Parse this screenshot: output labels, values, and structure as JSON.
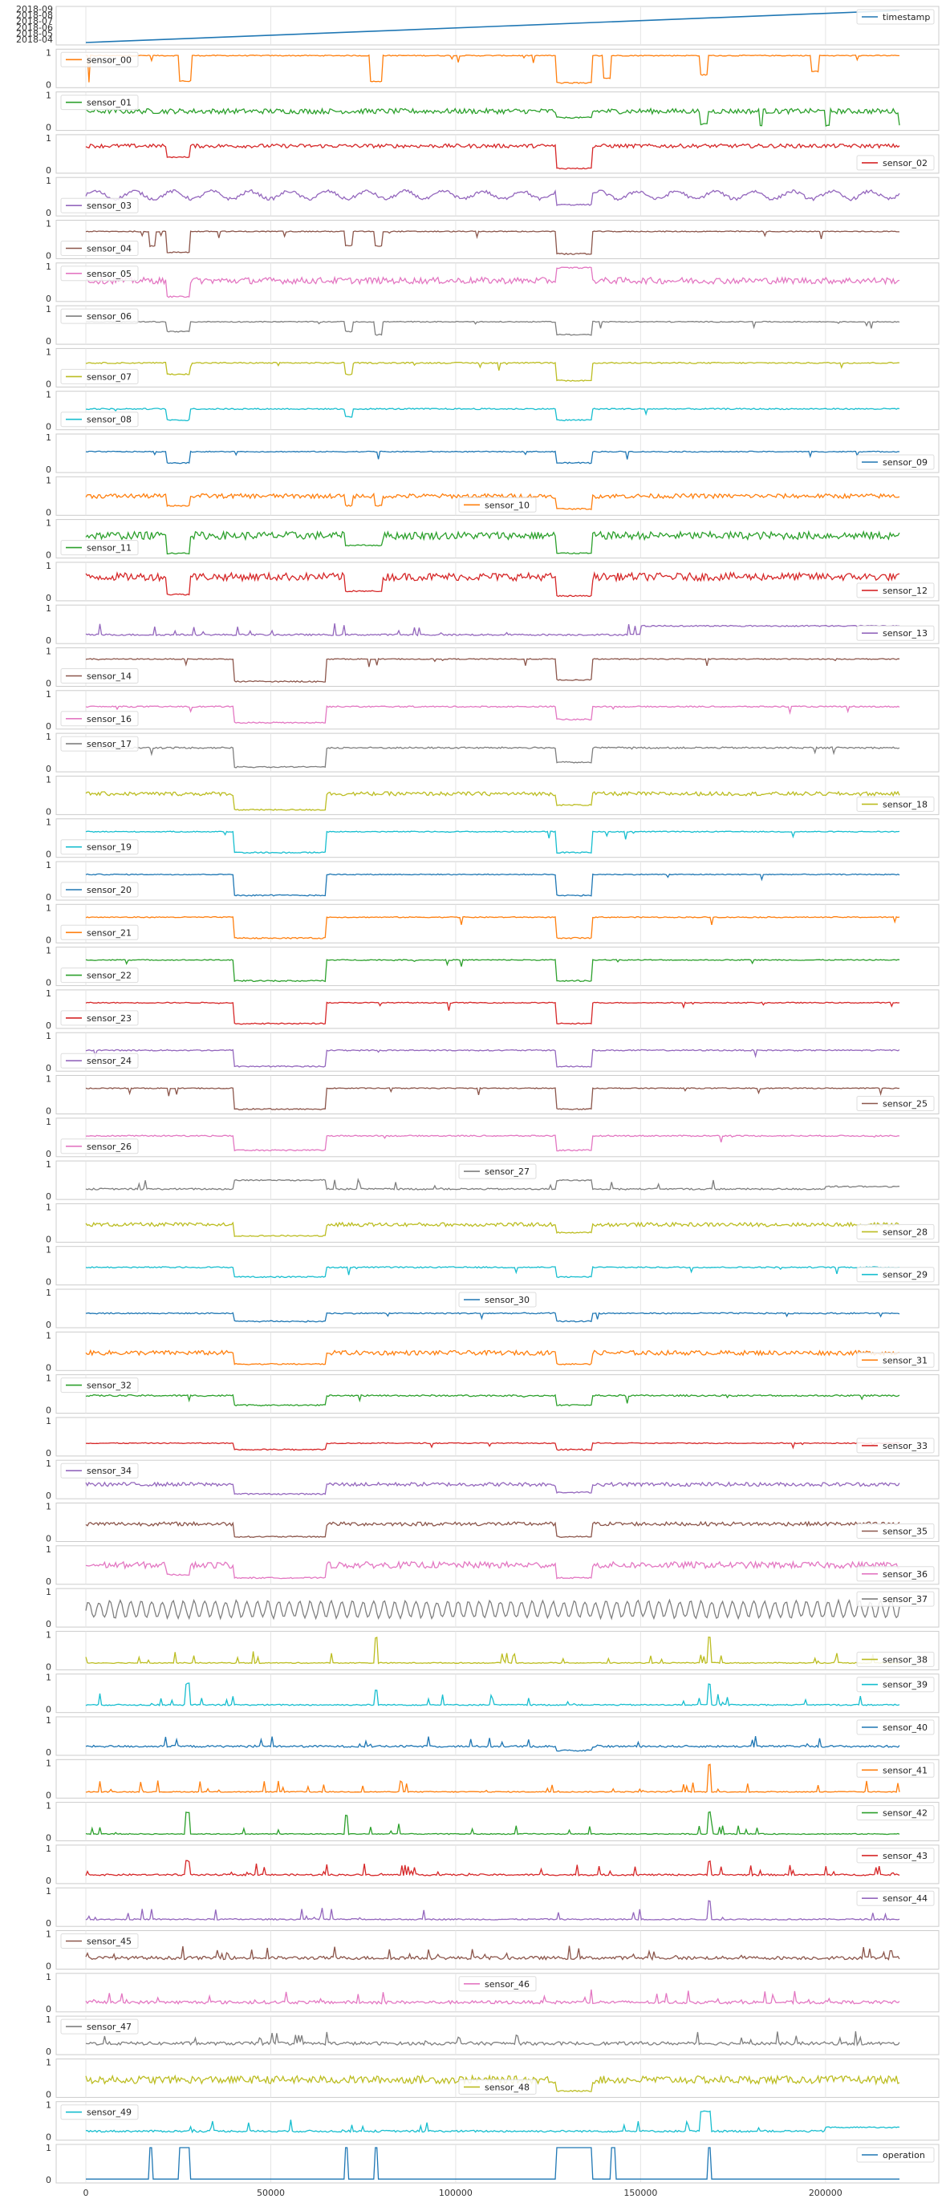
{
  "chart_data": {
    "type": "line",
    "xlim": [
      -10000,
      230000
    ],
    "x_ticks": [
      0,
      50000,
      100000,
      150000,
      200000
    ],
    "x_tick_labels": [
      "0",
      "50000",
      "100000",
      "150000",
      "200000"
    ],
    "y_tick_labels": [
      "0",
      "1"
    ],
    "timestamp_tick_labels": [
      "2018-09",
      "2018-08",
      "2018-07",
      "2018-06",
      "2018-05",
      "2018-04"
    ],
    "grid": true,
    "panels": [
      {
        "name": "timestamp",
        "color": "#1f77b4",
        "legend": "top-right",
        "pattern": "ramp"
      },
      {
        "name": "sensor_00",
        "color": "#ff7f0e",
        "legend": "top-left",
        "pattern": "flat",
        "base": 0.9,
        "noise": 0.03,
        "events": [
          [
            0.8,
            0.9,
            0.08
          ],
          [
            0.9,
            1.2,
            0.05
          ],
          [
            25,
            28.5,
            0.1
          ],
          [
            77,
            80,
            0.1
          ],
          [
            127,
            137,
            0.05
          ],
          [
            140,
            142,
            0.2
          ],
          [
            166,
            168,
            0.3
          ],
          [
            196,
            198,
            0.4
          ]
        ]
      },
      {
        "name": "sensor_01",
        "color": "#2ca02c",
        "legend": "top-left",
        "pattern": "noisy",
        "base": 0.5,
        "noise": 0.08,
        "events": [
          [
            127,
            137,
            0.3
          ],
          [
            166,
            168,
            0.1
          ],
          [
            182,
            183,
            0.05
          ],
          [
            200,
            201,
            0.05
          ],
          [
            220,
            221,
            0.05
          ]
        ]
      },
      {
        "name": "sensor_02",
        "color": "#d62728",
        "legend": "bottom-right",
        "pattern": "noisy",
        "base": 0.75,
        "noise": 0.06,
        "events": [
          [
            22,
            28,
            0.4
          ],
          [
            127,
            137,
            0.05
          ]
        ]
      },
      {
        "name": "sensor_03",
        "color": "#9467bd",
        "legend": "bottom-left",
        "pattern": "wavy",
        "base": 0.55,
        "noise": 0.1,
        "events": [
          [
            127,
            137,
            0.25
          ]
        ]
      },
      {
        "name": "sensor_04",
        "color": "#8c564b",
        "legend": "bottom-left",
        "pattern": "flat",
        "base": 0.75,
        "noise": 0.03,
        "events": [
          [
            17,
            19,
            0.3
          ],
          [
            22,
            28,
            0.1
          ],
          [
            70,
            72,
            0.3
          ],
          [
            78,
            80,
            0.3
          ],
          [
            127,
            137,
            0.05
          ]
        ]
      },
      {
        "name": "sensor_05",
        "color": "#e377c2",
        "legend": "top-left",
        "pattern": "noisy",
        "base": 0.55,
        "noise": 0.1,
        "events": [
          [
            22,
            28,
            0.05
          ],
          [
            127,
            137,
            0.95
          ]
        ]
      },
      {
        "name": "sensor_06",
        "color": "#7f7f7f",
        "legend": "top-left",
        "pattern": "flat",
        "base": 0.6,
        "noise": 0.03,
        "events": [
          [
            22,
            28,
            0.3
          ],
          [
            70,
            72,
            0.3
          ],
          [
            78,
            80,
            0.2
          ],
          [
            127,
            137,
            0.2
          ]
        ]
      },
      {
        "name": "sensor_07",
        "color": "#bcbd22",
        "legend": "bottom-left",
        "pattern": "flat",
        "base": 0.65,
        "noise": 0.04,
        "events": [
          [
            22,
            28,
            0.3
          ],
          [
            70,
            72,
            0.3
          ],
          [
            127,
            137,
            0.1
          ]
        ]
      },
      {
        "name": "sensor_08",
        "color": "#17becf",
        "legend": "bottom-left",
        "pattern": "flat",
        "base": 0.55,
        "noise": 0.04,
        "events": [
          [
            22,
            28,
            0.2
          ],
          [
            70,
            72,
            0.3
          ],
          [
            127,
            137,
            0.2
          ]
        ]
      },
      {
        "name": "sensor_09",
        "color": "#1f77b4",
        "legend": "bottom-right",
        "pattern": "flat",
        "base": 0.55,
        "noise": 0.03,
        "events": [
          [
            22,
            28,
            0.2
          ],
          [
            127,
            137,
            0.2
          ]
        ]
      },
      {
        "name": "sensor_10",
        "color": "#ff7f0e",
        "legend": "bottom-center",
        "pattern": "noisy",
        "base": 0.5,
        "noise": 0.07,
        "events": [
          [
            22,
            28,
            0.2
          ],
          [
            70,
            72,
            0.2
          ],
          [
            78,
            80,
            0.2
          ],
          [
            127,
            137,
            0.1
          ]
        ]
      },
      {
        "name": "sensor_11",
        "color": "#2ca02c",
        "legend": "bottom-left",
        "pattern": "noisy",
        "base": 0.6,
        "noise": 0.12,
        "events": [
          [
            22,
            28,
            0.05
          ],
          [
            70,
            80,
            0.3
          ],
          [
            127,
            137,
            0.05
          ]
        ]
      },
      {
        "name": "sensor_12",
        "color": "#d62728",
        "legend": "bottom-right",
        "pattern": "noisy",
        "base": 0.65,
        "noise": 0.12,
        "events": [
          [
            22,
            28,
            0.1
          ],
          [
            70,
            80,
            0.2
          ],
          [
            127,
            137,
            0.05
          ]
        ]
      },
      {
        "name": "sensor_13",
        "color": "#9467bd",
        "legend": "bottom-right",
        "pattern": "spiky",
        "base": 0.15,
        "noise": 0.05,
        "events": [
          [
            150,
            220,
            0.45
          ]
        ]
      },
      {
        "name": "sensor_14",
        "color": "#8c564b",
        "legend": "bottom-left",
        "pattern": "flat",
        "base": 0.75,
        "noise": 0.03,
        "events": [
          [
            40,
            65,
            0.05
          ],
          [
            127,
            137,
            0.1
          ]
        ]
      },
      {
        "name": "sensor_16",
        "color": "#e377c2",
        "legend": "bottom-left",
        "pattern": "flat",
        "base": 0.6,
        "noise": 0.04,
        "events": [
          [
            40,
            65,
            0.1
          ],
          [
            127,
            137,
            0.2
          ]
        ]
      },
      {
        "name": "sensor_17",
        "color": "#7f7f7f",
        "legend": "top-left",
        "pattern": "flat",
        "base": 0.65,
        "noise": 0.05,
        "events": [
          [
            40,
            65,
            0.05
          ],
          [
            127,
            137,
            0.2
          ]
        ]
      },
      {
        "name": "sensor_18",
        "color": "#bcbd22",
        "legend": "bottom-right",
        "pattern": "noisy",
        "base": 0.55,
        "noise": 0.06,
        "events": [
          [
            40,
            65,
            0.05
          ],
          [
            127,
            137,
            0.2
          ]
        ]
      },
      {
        "name": "sensor_19",
        "color": "#17becf",
        "legend": "bottom-left",
        "pattern": "flat",
        "base": 0.7,
        "noise": 0.03,
        "events": [
          [
            40,
            65,
            0.05
          ],
          [
            127,
            137,
            0.05
          ]
        ]
      },
      {
        "name": "sensor_20",
        "color": "#1f77b4",
        "legend": "bottom-left",
        "pattern": "flat",
        "base": 0.7,
        "noise": 0.03,
        "events": [
          [
            40,
            65,
            0.05
          ],
          [
            127,
            137,
            0.05
          ]
        ]
      },
      {
        "name": "sensor_21",
        "color": "#ff7f0e",
        "legend": "bottom-left",
        "pattern": "flat",
        "base": 0.7,
        "noise": 0.03,
        "events": [
          [
            40,
            65,
            0.05
          ],
          [
            127,
            137,
            0.05
          ]
        ]
      },
      {
        "name": "sensor_22",
        "color": "#2ca02c",
        "legend": "bottom-left",
        "pattern": "flat",
        "base": 0.7,
        "noise": 0.03,
        "events": [
          [
            40,
            65,
            0.05
          ],
          [
            127,
            137,
            0.05
          ]
        ]
      },
      {
        "name": "sensor_23",
        "color": "#d62728",
        "legend": "bottom-left",
        "pattern": "flat",
        "base": 0.7,
        "noise": 0.03,
        "events": [
          [
            40,
            65,
            0.05
          ],
          [
            127,
            137,
            0.05
          ]
        ]
      },
      {
        "name": "sensor_24",
        "color": "#9467bd",
        "legend": "bottom-left",
        "pattern": "flat",
        "base": 0.55,
        "noise": 0.04,
        "events": [
          [
            40,
            65,
            0.05
          ],
          [
            127,
            137,
            0.05
          ]
        ]
      },
      {
        "name": "sensor_25",
        "color": "#8c564b",
        "legend": "bottom-right",
        "pattern": "flat",
        "base": 0.7,
        "noise": 0.03,
        "events": [
          [
            40,
            65,
            0.05
          ],
          [
            127,
            137,
            0.05
          ]
        ]
      },
      {
        "name": "sensor_26",
        "color": "#e377c2",
        "legend": "bottom-left",
        "pattern": "flat",
        "base": 0.55,
        "noise": 0.04,
        "events": [
          [
            40,
            65,
            0.1
          ],
          [
            127,
            137,
            0.1
          ]
        ]
      },
      {
        "name": "sensor_27",
        "color": "#7f7f7f",
        "legend": "top-center",
        "pattern": "spiky",
        "base": 0.2,
        "noise": 0.05,
        "events": [
          [
            40,
            65,
            0.5
          ],
          [
            127,
            137,
            0.5
          ],
          [
            200,
            222,
            0.3
          ]
        ]
      },
      {
        "name": "sensor_28",
        "color": "#bcbd22",
        "legend": "bottom-right",
        "pattern": "noisy",
        "base": 0.45,
        "noise": 0.06,
        "events": [
          [
            40,
            65,
            0.1
          ],
          [
            127,
            137,
            0.2
          ]
        ]
      },
      {
        "name": "sensor_29",
        "color": "#17becf",
        "legend": "bottom-right",
        "pattern": "flat",
        "base": 0.45,
        "noise": 0.04,
        "events": [
          [
            40,
            65,
            0.15
          ],
          [
            127,
            137,
            0.15
          ]
        ]
      },
      {
        "name": "sensor_30",
        "color": "#1f77b4",
        "legend": "top-center",
        "pattern": "flat",
        "base": 0.35,
        "noise": 0.04,
        "events": [
          [
            40,
            65,
            0.1
          ],
          [
            127,
            137,
            0.1
          ]
        ]
      },
      {
        "name": "sensor_31",
        "color": "#ff7f0e",
        "legend": "bottom-right",
        "pattern": "noisy",
        "base": 0.45,
        "noise": 0.07,
        "events": [
          [
            40,
            65,
            0.1
          ],
          [
            127,
            137,
            0.1
          ]
        ]
      },
      {
        "name": "sensor_32",
        "color": "#2ca02c",
        "legend": "top-left",
        "pattern": "flat",
        "base": 0.45,
        "noise": 0.05,
        "events": [
          [
            40,
            65,
            0.15
          ],
          [
            127,
            137,
            0.15
          ]
        ]
      },
      {
        "name": "sensor_33",
        "color": "#d62728",
        "legend": "bottom-right",
        "pattern": "flat",
        "base": 0.3,
        "noise": 0.03,
        "events": [
          [
            40,
            65,
            0.1
          ],
          [
            127,
            137,
            0.1
          ]
        ]
      },
      {
        "name": "sensor_34",
        "color": "#9467bd",
        "legend": "top-left",
        "pattern": "noisy",
        "base": 0.35,
        "noise": 0.06,
        "events": [
          [
            40,
            65,
            0.05
          ],
          [
            127,
            137,
            0.1
          ]
        ]
      },
      {
        "name": "sensor_35",
        "color": "#8c564b",
        "legend": "bottom-right",
        "pattern": "noisy",
        "base": 0.45,
        "noise": 0.06,
        "events": [
          [
            40,
            65,
            0.05
          ],
          [
            127,
            137,
            0.05
          ]
        ]
      },
      {
        "name": "sensor_36",
        "color": "#e377c2",
        "legend": "bottom-right",
        "pattern": "noisy",
        "base": 0.5,
        "noise": 0.1,
        "events": [
          [
            22,
            28,
            0.2
          ],
          [
            40,
            65,
            0.1
          ],
          [
            127,
            137,
            0.1
          ]
        ]
      },
      {
        "name": "sensor_37",
        "color": "#7f7f7f",
        "legend": "top-right",
        "pattern": "oscillating",
        "base": 0.45,
        "noise": 0.25,
        "events": []
      },
      {
        "name": "sensor_38",
        "color": "#bcbd22",
        "legend": "bottom-right",
        "pattern": "spiky",
        "base": 0.1,
        "noise": 0.03,
        "events": [
          [
            78,
            79,
            0.9
          ],
          [
            168,
            169,
            0.9
          ]
        ]
      },
      {
        "name": "sensor_39",
        "color": "#17becf",
        "legend": "top-right",
        "pattern": "spiky",
        "base": 0.12,
        "noise": 0.04,
        "events": [
          [
            27,
            28,
            0.8
          ],
          [
            78,
            79,
            0.6
          ],
          [
            168,
            169,
            0.8
          ]
        ]
      },
      {
        "name": "sensor_40",
        "color": "#1f77b4",
        "legend": "top-right",
        "pattern": "spiky",
        "base": 0.15,
        "noise": 0.06,
        "events": [
          [
            127,
            137,
            0.05
          ]
        ]
      },
      {
        "name": "sensor_41",
        "color": "#ff7f0e",
        "legend": "top-right",
        "pattern": "spiky",
        "base": 0.08,
        "noise": 0.03,
        "events": [
          [
            168,
            169,
            0.95
          ]
        ]
      },
      {
        "name": "sensor_42",
        "color": "#2ca02c",
        "legend": "top-right",
        "pattern": "spiky",
        "base": 0.1,
        "noise": 0.03,
        "events": [
          [
            27,
            28,
            0.8
          ],
          [
            70,
            71,
            0.7
          ],
          [
            168,
            169,
            0.8
          ]
        ]
      },
      {
        "name": "sensor_43",
        "color": "#d62728",
        "legend": "top-right",
        "pattern": "spiky",
        "base": 0.15,
        "noise": 0.05,
        "events": [
          [
            27,
            28,
            0.6
          ],
          [
            168,
            169,
            0.6
          ]
        ]
      },
      {
        "name": "sensor_44",
        "color": "#9467bd",
        "legend": "top-right",
        "pattern": "spiky",
        "base": 0.1,
        "noise": 0.04,
        "events": [
          [
            168,
            169,
            0.7
          ]
        ]
      },
      {
        "name": "sensor_45",
        "color": "#8c564b",
        "legend": "top-left",
        "pattern": "spiky",
        "base": 0.2,
        "noise": 0.1,
        "events": []
      },
      {
        "name": "sensor_46",
        "color": "#e377c2",
        "legend": "top-center",
        "pattern": "spiky",
        "base": 0.15,
        "noise": 0.1,
        "events": []
      },
      {
        "name": "sensor_47",
        "color": "#7f7f7f",
        "legend": "top-left",
        "pattern": "spiky",
        "base": 0.2,
        "noise": 0.1,
        "events": []
      },
      {
        "name": "sensor_48",
        "color": "#bcbd22",
        "legend": "bottom-center",
        "pattern": "noisy",
        "base": 0.45,
        "noise": 0.12,
        "events": [
          [
            127,
            137,
            0.1
          ]
        ]
      },
      {
        "name": "sensor_49",
        "color": "#17becf",
        "legend": "top-left",
        "pattern": "spiky",
        "base": 0.15,
        "noise": 0.06,
        "events": [
          [
            166,
            169,
            0.8
          ],
          [
            200,
            222,
            0.3
          ]
        ]
      },
      {
        "name": "operation",
        "color": "#1f77b4",
        "legend": "top-right",
        "pattern": "binary",
        "base": 0.0,
        "noise": 0.0,
        "events": [
          [
            17,
            18,
            1
          ],
          [
            25,
            28,
            1
          ],
          [
            70,
            71,
            1
          ],
          [
            78,
            79,
            1
          ],
          [
            127,
            137,
            1
          ],
          [
            142,
            143,
            1
          ],
          [
            168,
            169,
            1
          ]
        ]
      }
    ]
  }
}
